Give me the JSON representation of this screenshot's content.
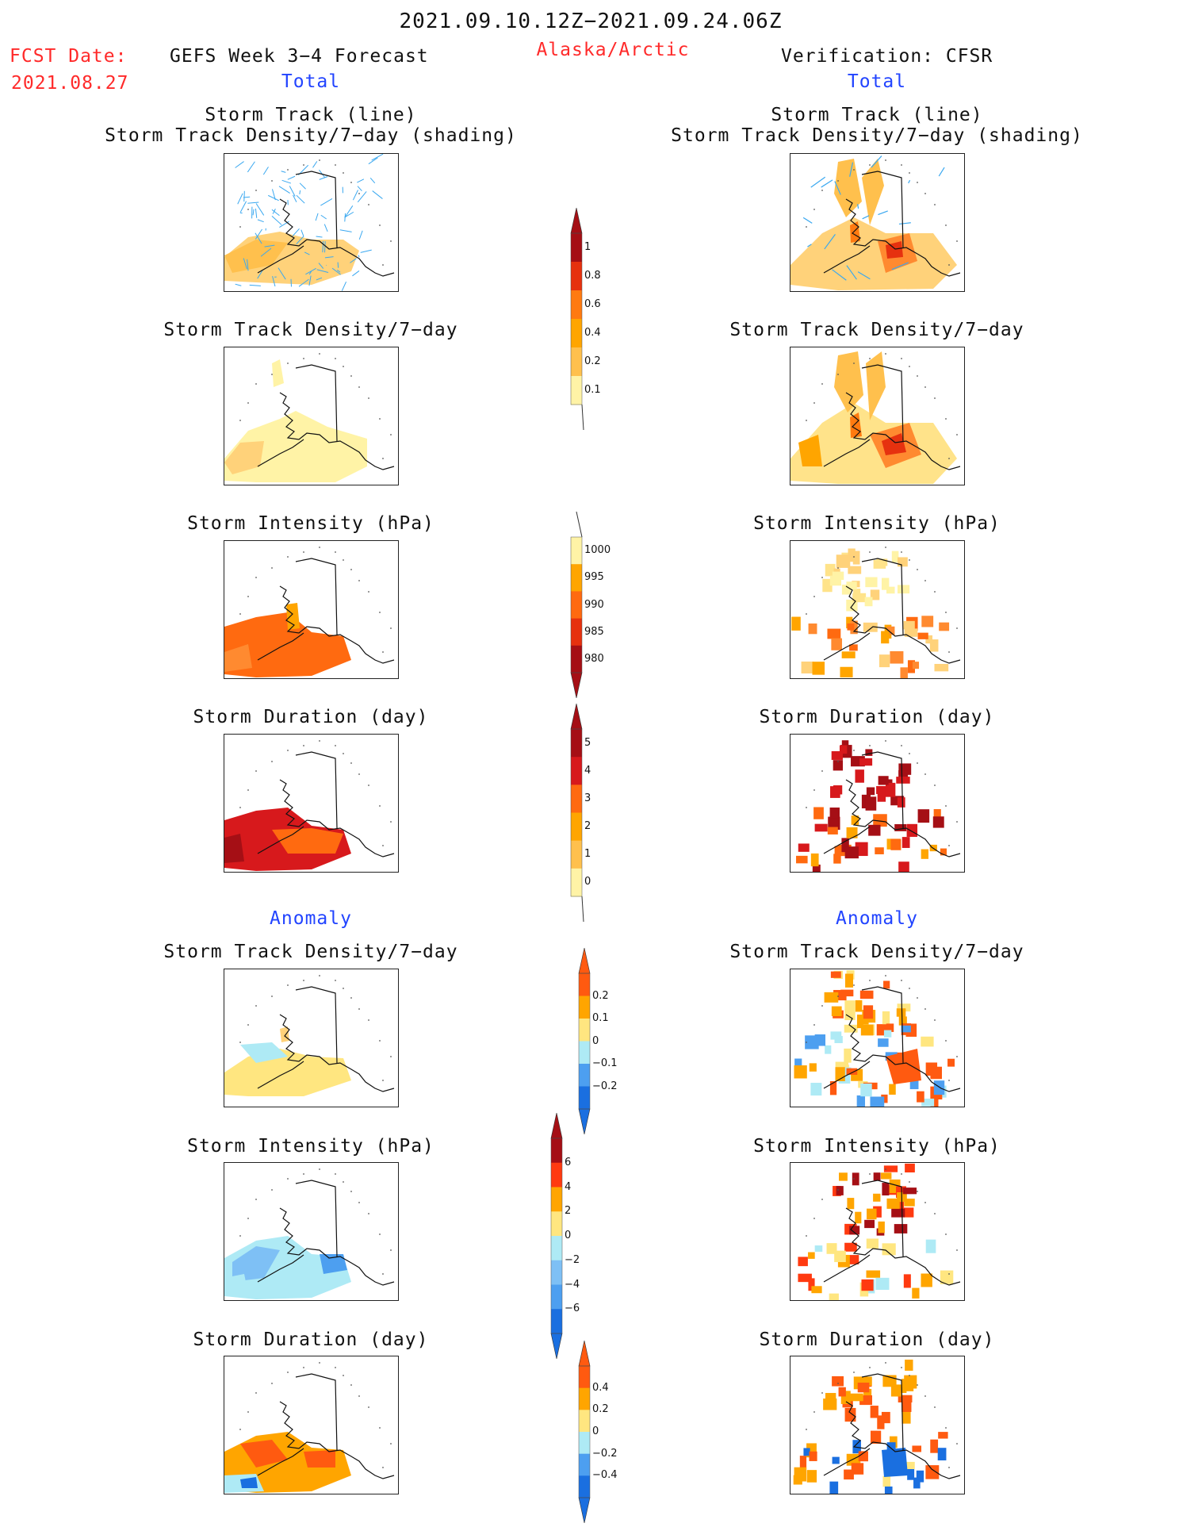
{
  "header": {
    "date_range": "2021.09.10.12Z−2021.09.24.06Z",
    "fcst_label": "FCST Date:",
    "fcst_date": "2021.08.27",
    "forecast_title": "GEFS Week 3−4 Forecast",
    "region": "Alaska/Arctic",
    "verification": "Verification: CFSR",
    "left_total": "Total",
    "right_total": "Total",
    "left_anomaly": "Anomaly",
    "right_anomaly": "Anomaly"
  },
  "panels": {
    "track_title_line1": "Storm Track (line)",
    "track_title_line2": "Storm Track Density/7−day (shading)",
    "density_title": "Storm Track Density/7−day",
    "intensity_title": "Storm Intensity (hPa)",
    "duration_title": "Storm Duration (day)"
  },
  "colorbars": {
    "density_total": {
      "labels": [
        "1",
        "0.8",
        "0.6",
        "0.4",
        "0.2",
        "0.1"
      ],
      "colors": [
        "#a50f15",
        "#e6310f",
        "#ff7a10",
        "#ffa500",
        "#ffc04d",
        "#fff3a6"
      ]
    },
    "intensity_total": {
      "labels": [
        "1000",
        "995",
        "990",
        "985",
        "980"
      ],
      "colors": [
        "#fff3a6",
        "#ffa500",
        "#ff6a10",
        "#e6310f",
        "#a50f15"
      ]
    },
    "duration_total": {
      "labels": [
        "5",
        "4",
        "3",
        "2",
        "1",
        "0"
      ],
      "colors": [
        "#a50f15",
        "#d7191c",
        "#ff6a10",
        "#ffa500",
        "#ffc04d",
        "#fff3a6"
      ]
    },
    "density_anom": {
      "labels": [
        "0.2",
        "0.1",
        "0",
        "−0.1",
        "−0.2"
      ],
      "colors": [
        "#ff5a10",
        "#ffa500",
        "#ffe680",
        "#aeeaf5",
        "#4d9ff0",
        "#1a6fe0"
      ]
    },
    "intensity_anom": {
      "labels": [
        "6",
        "4",
        "2",
        "0",
        "−2",
        "−4",
        "−6"
      ],
      "colors": [
        "#a50f15",
        "#ff3a10",
        "#ffa500",
        "#ffe680",
        "#aeeaf5",
        "#7ec0f5",
        "#4d9ff0",
        "#1a6fe0"
      ]
    },
    "duration_anom": {
      "labels": [
        "0.4",
        "0.2",
        "0",
        "−0.2",
        "−0.4"
      ],
      "colors": [
        "#ff5a10",
        "#ffa500",
        "#ffe680",
        "#aeeaf5",
        "#4d9ff0",
        "#1a6fe0"
      ]
    }
  }
}
